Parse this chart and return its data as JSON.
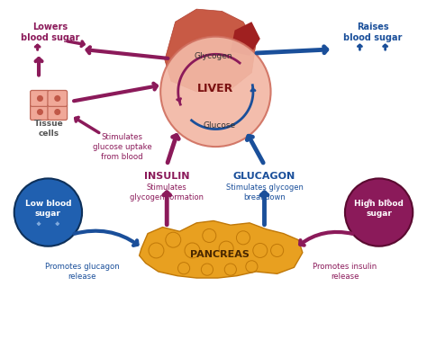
{
  "bg_color": "#ffffff",
  "magenta": "#8B1A5A",
  "blue": "#1A4F9A",
  "pancreas_color": "#E8A020",
  "liver_fill": "#D4695A",
  "liver_circle": "#F0B8A8",
  "low_blood_circle": "#2060B0",
  "high_blood_circle": "#8B1A5A",
  "labels": {
    "liver": "LIVER",
    "pancreas": "PANCREAS",
    "insulin": "INSULIN",
    "insulin_sub": "Stimulates\nglycogen formation",
    "glucagon": "GLUCAGON",
    "glucagon_sub": "Stimulates glycogen\nbreakdown",
    "glycogen": "Glycogen",
    "glucose": "Glucose",
    "lowers": "Lowers\nblood sugar",
    "raises": "Raises\nblood sugar",
    "tissue": "Tissue\ncells",
    "stimulates": "Stimulates\nglucose uptake\nfrom blood",
    "low_blood": "Low blood\nsugar",
    "high_blood": "High blood\nsugar",
    "promotes_glucagon": "Promotes glucagon\nrelease",
    "promotes_insulin": "Promotes insulin\nrelease"
  }
}
